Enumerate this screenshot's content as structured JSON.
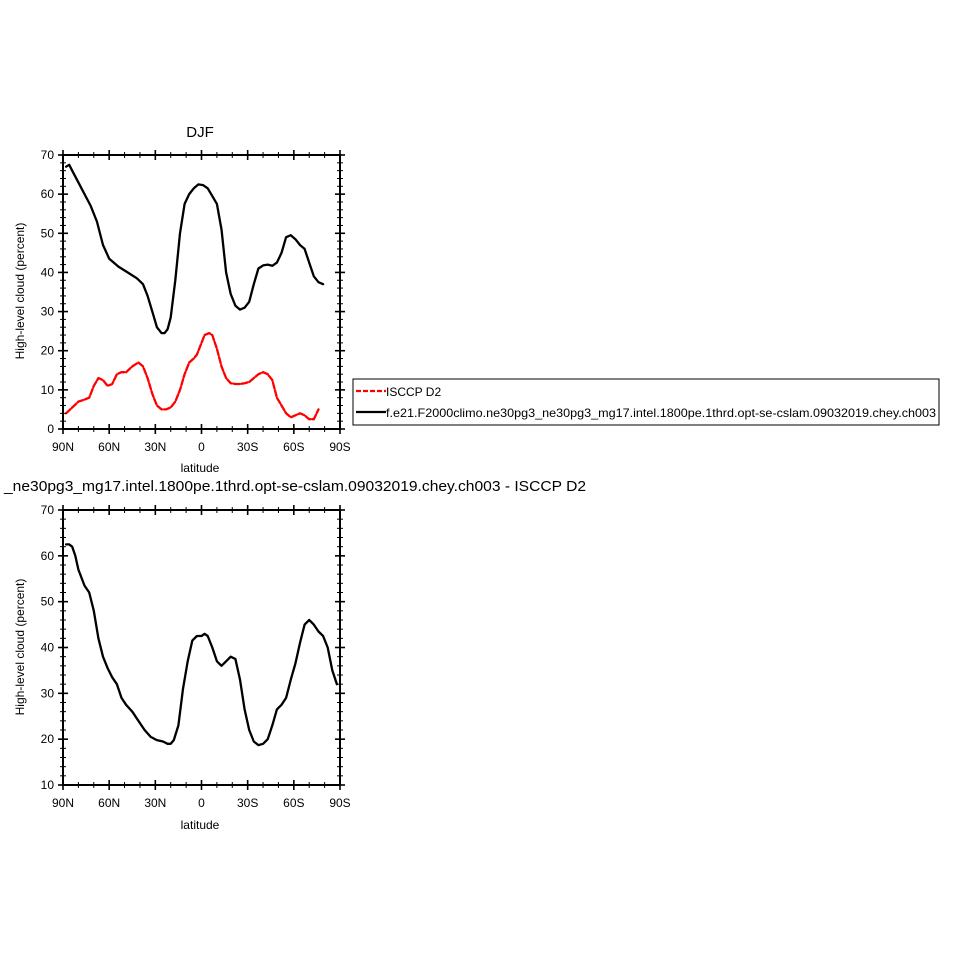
{
  "chart_data": [
    {
      "type": "line",
      "title": "DJF",
      "xlabel": "latitude",
      "ylabel": "High-level cloud (percent)",
      "xlim": [
        -90,
        90
      ],
      "ylim": [
        0,
        70
      ],
      "x_tick_values": [
        -90,
        -60,
        -30,
        0,
        30,
        60,
        90
      ],
      "x_tick_labels": [
        "90N",
        "60N",
        "30N",
        "0",
        "30S",
        "60S",
        "90S"
      ],
      "y_tick_values": [
        0,
        10,
        20,
        30,
        40,
        50,
        60,
        70
      ],
      "y_tick_labels": [
        "0",
        "10",
        "20",
        "30",
        "40",
        "50",
        "60",
        "70"
      ],
      "grid": false,
      "legend_position": "right",
      "series": [
        {
          "name": "ISCCP D2",
          "color": "#ff0000",
          "dash": "dashed",
          "x": [
            -88,
            -84,
            -80,
            -76,
            -73,
            -70,
            -67,
            -64,
            -61,
            -58,
            -55,
            -52,
            -49,
            -45,
            -41,
            -38,
            -35,
            -32,
            -29,
            -26,
            -23,
            -20,
            -17,
            -14,
            -11,
            -8,
            -5,
            -3,
            0,
            2,
            5,
            7,
            10,
            13,
            16,
            19,
            22,
            25,
            28,
            31,
            34,
            37,
            40,
            43,
            46,
            49,
            52,
            55,
            58,
            61,
            64,
            67,
            70,
            73,
            76,
            79,
            82,
            85,
            88
          ],
          "y": [
            4,
            5.5,
            7,
            7.5,
            8,
            11,
            13,
            12.5,
            11,
            11.5,
            14,
            14.5,
            14.5,
            16,
            17,
            16,
            13,
            9,
            6,
            5,
            5,
            5.5,
            7,
            10,
            14,
            17,
            18,
            19,
            22,
            24,
            24.5,
            24,
            20.5,
            16,
            13,
            11.7,
            11.5,
            11.5,
            11.7,
            12,
            13,
            14,
            14.5,
            14,
            12.5,
            8,
            6,
            4,
            3,
            3.5,
            4,
            3.5,
            2.5,
            2.5,
            5,
            null,
            null,
            null,
            null
          ]
        },
        {
          "name": "f.e21.F2000climo.ne30pg3_ne30pg3_mg17.intel.1800pe.1thrd.opt-se-cslam.09032019.chey.ch003",
          "color": "#000000",
          "dash": "solid",
          "x": [
            -88,
            -86,
            -84,
            -80,
            -76,
            -72,
            -68,
            -64,
            -60,
            -57,
            -54,
            -50,
            -46,
            -42,
            -38,
            -35,
            -32,
            -29,
            -26,
            -24,
            -22,
            -20,
            -17,
            -14,
            -11,
            -8,
            -5,
            -2,
            1,
            4,
            7,
            10,
            13,
            16,
            19,
            22,
            25,
            28,
            31,
            34,
            37,
            40,
            43,
            46,
            49,
            52,
            55,
            58,
            61,
            64,
            67,
            70,
            73,
            76,
            79,
            82,
            85,
            88
          ],
          "y": [
            67,
            67.5,
            66,
            63,
            60,
            57,
            53,
            47,
            43.5,
            42.5,
            41.5,
            40.5,
            39.5,
            38.5,
            37,
            34,
            30,
            26,
            24.5,
            24.5,
            25.5,
            28.5,
            38,
            50,
            57.5,
            60,
            61.5,
            62.5,
            62.3,
            61.5,
            59.5,
            57.5,
            51,
            40,
            34.5,
            31.5,
            30.5,
            31,
            32.5,
            37,
            41,
            41.8,
            42,
            41.7,
            42.5,
            45,
            49,
            49.5,
            48.5,
            47,
            46,
            42.5,
            39,
            37.5,
            37,
            null,
            null,
            null
          ]
        }
      ]
    },
    {
      "type": "line",
      "title": "_ne30pg3_mg17.intel.1800pe.1thrd.opt-se-cslam.09032019.chey.ch003 - ISCCP D2",
      "xlabel": "latitude",
      "ylabel": "High-level cloud (percent)",
      "xlim": [
        -90,
        90
      ],
      "ylim": [
        10,
        70
      ],
      "x_tick_values": [
        -90,
        -60,
        -30,
        0,
        30,
        60,
        90
      ],
      "x_tick_labels": [
        "90N",
        "60N",
        "30N",
        "0",
        "30S",
        "60S",
        "90S"
      ],
      "y_tick_values": [
        10,
        20,
        30,
        40,
        50,
        60,
        70
      ],
      "y_tick_labels": [
        "10",
        "20",
        "30",
        "40",
        "50",
        "60",
        "70"
      ],
      "grid": false,
      "series": [
        {
          "color": "#000000",
          "dash": "solid",
          "x": [
            -88,
            -86,
            -84,
            -82,
            -80,
            -76,
            -73,
            -70,
            -67,
            -64,
            -61,
            -58,
            -55,
            -52,
            -49,
            -45,
            -41,
            -37,
            -33,
            -29,
            -25,
            -22,
            -20,
            -18,
            -15,
            -12,
            -9,
            -6,
            -3,
            0,
            2,
            4,
            7,
            10,
            13,
            16,
            19,
            22,
            25,
            28,
            31,
            34,
            37,
            40,
            43,
            46,
            49,
            52,
            55,
            58,
            61,
            64,
            67,
            70,
            73,
            76,
            79,
            82,
            85,
            88
          ],
          "y": [
            62.5,
            62.5,
            62,
            60,
            57,
            53.5,
            52,
            48,
            42,
            38,
            35.5,
            33.5,
            32,
            29,
            27.5,
            26,
            24,
            22,
            20.5,
            19.8,
            19.5,
            19,
            19,
            19.8,
            23,
            31,
            37,
            41.5,
            42.5,
            42.5,
            43,
            42.5,
            40,
            37,
            36,
            37,
            38,
            37.5,
            33,
            26.5,
            22,
            19.5,
            18.7,
            19,
            20,
            23,
            26.5,
            27.5,
            29,
            33,
            36.5,
            41,
            45,
            46,
            45,
            43.5,
            42.5,
            40,
            35,
            32
          ]
        }
      ]
    }
  ]
}
